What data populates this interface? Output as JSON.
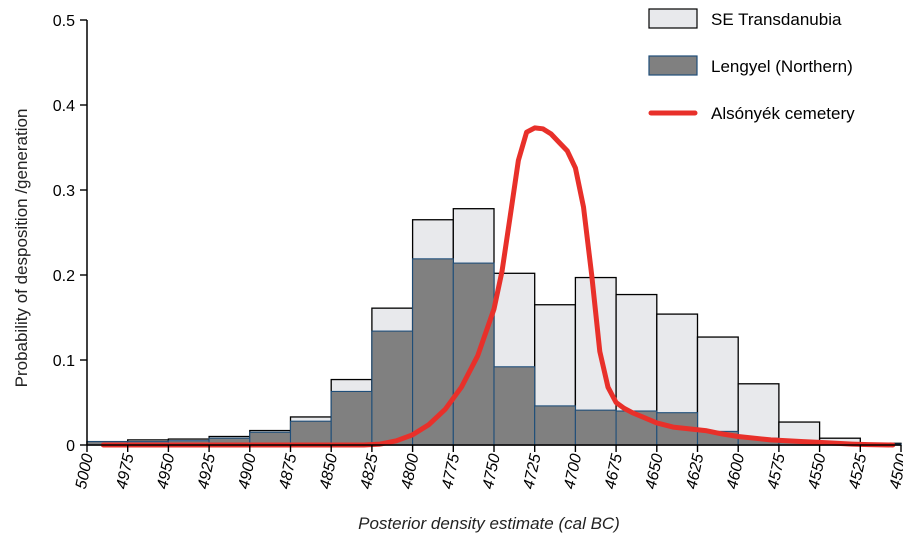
{
  "chart_data": {
    "type": "bar",
    "xlabel": "Posterior density estimate (cal BC)",
    "ylabel": "Probability of desposition /generation",
    "xlim": [
      5000,
      4500
    ],
    "ylim": [
      0,
      0.5
    ],
    "bin_width": 25,
    "x_ticks": [
      "5000",
      "4975",
      "4950",
      "4925",
      "4900",
      "4875",
      "4850",
      "4825",
      "4800",
      "4775",
      "4750",
      "4725",
      "4700",
      "4675",
      "4650",
      "4625",
      "4600",
      "4575",
      "4550",
      "4525",
      "4500"
    ],
    "y_ticks": [
      "0",
      "0.1",
      "0.2",
      "0.3",
      "0.4",
      "0.5"
    ],
    "bin_starts": [
      5000,
      4975,
      4950,
      4925,
      4900,
      4875,
      4850,
      4825,
      4800,
      4775,
      4750,
      4725,
      4700,
      4675,
      4650,
      4625,
      4600,
      4575,
      4550,
      4525
    ],
    "legend_position": "top-right",
    "series": [
      {
        "name": "SE Transdanubia",
        "kind": "bar",
        "color": "#e8e9ec",
        "edge": "#000000",
        "values": [
          0.004,
          0.006,
          0.007,
          0.01,
          0.017,
          0.033,
          0.077,
          0.161,
          0.265,
          0.278,
          0.202,
          0.165,
          0.197,
          0.177,
          0.154,
          0.127,
          0.072,
          0.027,
          0.008,
          0.002
        ]
      },
      {
        "name": "Lengyel (Northern)",
        "kind": "bar",
        "color": "#808080",
        "edge": "#1f4e79",
        "values": [
          0.004,
          0.004,
          0.005,
          0.008,
          0.015,
          0.028,
          0.063,
          0.134,
          0.219,
          0.214,
          0.092,
          0.046,
          0.041,
          0.04,
          0.038,
          0.016,
          0.008,
          0.003,
          0.001,
          0.001
        ]
      },
      {
        "name": "Alsónyék cemetery",
        "kind": "line",
        "color": "#e8302a",
        "x": [
          4990,
          4960,
          4940,
          4900,
          4880,
          4860,
          4840,
          4830,
          4820,
          4810,
          4800,
          4790,
          4780,
          4770,
          4760,
          4750,
          4745,
          4740,
          4735,
          4730,
          4725,
          4720,
          4715,
          4710,
          4705,
          4700,
          4695,
          4690,
          4685,
          4680,
          4675,
          4670,
          4665,
          4660,
          4650,
          4640,
          4630,
          4620,
          4610,
          4600,
          4590,
          4580,
          4570,
          4560,
          4550,
          4540,
          4530,
          4520,
          4505
        ],
        "y": [
          0.0,
          0.0,
          0.0,
          0.0,
          0.0,
          0.0,
          0.0,
          0.0,
          0.001,
          0.005,
          0.012,
          0.024,
          0.042,
          0.068,
          0.105,
          0.16,
          0.205,
          0.27,
          0.335,
          0.368,
          0.373,
          0.372,
          0.366,
          0.356,
          0.346,
          0.326,
          0.28,
          0.2,
          0.11,
          0.068,
          0.05,
          0.043,
          0.038,
          0.034,
          0.026,
          0.021,
          0.019,
          0.017,
          0.013,
          0.01,
          0.008,
          0.006,
          0.005,
          0.004,
          0.003,
          0.002,
          0.001,
          0.0005,
          0.0
        ]
      }
    ]
  }
}
